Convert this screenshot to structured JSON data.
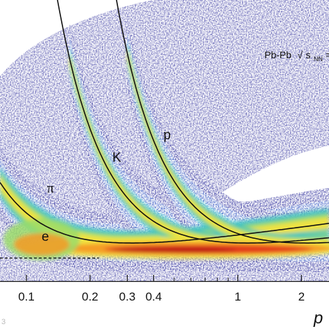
{
  "chart_data": {
    "type": "heatmap",
    "title": "",
    "annotation": {
      "main": "Pb-Pb",
      "sqrt": "√",
      "s": "s",
      "sub": "NN",
      "tail": "="
    },
    "xlabel": "p",
    "xscale": "log",
    "xlim": [
      0.075,
      2.7
    ],
    "ylim": [
      0,
      1
    ],
    "x_ticks": [
      0.1,
      0.2,
      0.3,
      0.4,
      1,
      2
    ],
    "x_tick_labels": [
      "0.1",
      "0.2",
      "0.3",
      "0.4",
      "1",
      "2"
    ],
    "x_minor_ticks": [
      0.5,
      0.6,
      0.7,
      0.8,
      0.9
    ],
    "colormap": [
      "#2a2a9a",
      "#3559c4",
      "#2f97d8",
      "#3cc3c0",
      "#9bdc6a",
      "#f2e340",
      "#f59a26",
      "#e2361c",
      "#b81818"
    ],
    "bands": [
      {
        "name": "e",
        "mass": 0.000511
      },
      {
        "name": "π",
        "mass": 0.1396
      },
      {
        "name": "K",
        "mass": 0.4937
      },
      {
        "name": "p",
        "mass": 0.9383
      }
    ],
    "curve_labels": [
      {
        "text": "π",
        "font": "greek",
        "x": 0.125,
        "y": 0.315
      },
      {
        "text": "e",
        "font": "latin",
        "x": 0.118,
        "y": 0.143
      },
      {
        "text": "K",
        "font": "latin",
        "x": 0.255,
        "y": 0.425
      },
      {
        "text": "p",
        "font": "latin",
        "x": 0.445,
        "y": 0.505
      }
    ],
    "electron_dashed_range": [
      0.075,
      0.22
    ],
    "corner_mark": "3"
  }
}
